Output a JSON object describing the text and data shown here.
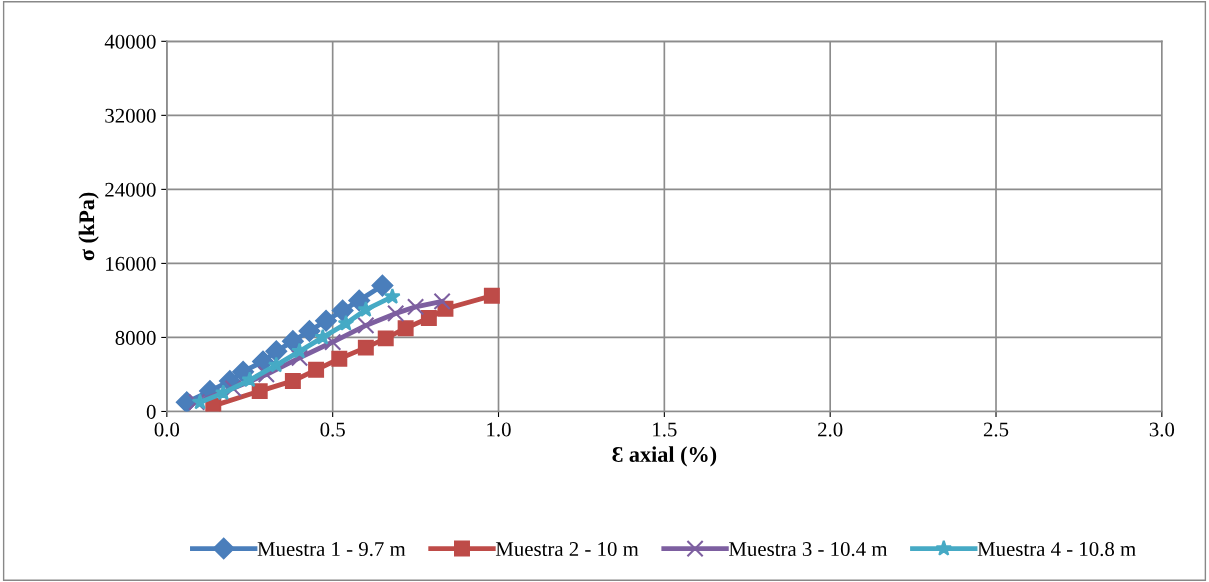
{
  "chart_data": {
    "type": "line",
    "xlabel": "Ɛ axial (%)",
    "ylabel": "σ (kPa)",
    "xlim": [
      0,
      3
    ],
    "xticks": [
      {
        "value": 0,
        "label": "0.0"
      },
      {
        "value": 0.5,
        "label": "0.5"
      },
      {
        "value": 1,
        "label": "1.0"
      },
      {
        "value": 1.5,
        "label": "1.5"
      },
      {
        "value": 2,
        "label": "2.0"
      },
      {
        "value": 2.5,
        "label": "2.5"
      },
      {
        "value": 3,
        "label": "3.0"
      }
    ],
    "ylim": [
      0,
      40000
    ],
    "yticks": [
      0,
      8000,
      16000,
      24000,
      32000,
      40000
    ],
    "grid": true,
    "legend": "bottom",
    "line_style": "solid",
    "series": [
      {
        "name": "Muestra 1 - 9.7 m",
        "color": "#4a7ebb",
        "marker": "diamond",
        "x": [
          0.06,
          0.13,
          0.19,
          0.23,
          0.29,
          0.33,
          0.38,
          0.43,
          0.48,
          0.53,
          0.58,
          0.65
        ],
        "values": [
          1000,
          2200,
          3300,
          4300,
          5400,
          6500,
          7600,
          8700,
          9800,
          10900,
          12000,
          13600
        ]
      },
      {
        "name": "Muestra 2 - 10 m",
        "color": "#be4b48",
        "marker": "square",
        "x": [
          0.14,
          0.28,
          0.38,
          0.45,
          0.52,
          0.6,
          0.66,
          0.72,
          0.79,
          0.84,
          0.98
        ],
        "values": [
          600,
          2200,
          3300,
          4500,
          5700,
          6900,
          7900,
          9000,
          10100,
          11100,
          12500
        ]
      },
      {
        "name": "Muestra 3 - 10.4 m",
        "color": "#7d5fa0",
        "marker": "cross",
        "x": [
          0.09,
          0.2,
          0.3,
          0.4,
          0.5,
          0.6,
          0.69,
          0.75,
          0.83
        ],
        "values": [
          1000,
          2500,
          4000,
          5800,
          7500,
          9300,
          10600,
          11300,
          11900
        ]
      },
      {
        "name": "Muestra 4 - 10.8 m",
        "color": "#46aac5",
        "marker": "star",
        "x": [
          0.1,
          0.17,
          0.25,
          0.33,
          0.4,
          0.47,
          0.54,
          0.6,
          0.68
        ],
        "values": [
          1000,
          2000,
          3400,
          5000,
          6500,
          8000,
          9500,
          11000,
          12400
        ]
      }
    ]
  }
}
